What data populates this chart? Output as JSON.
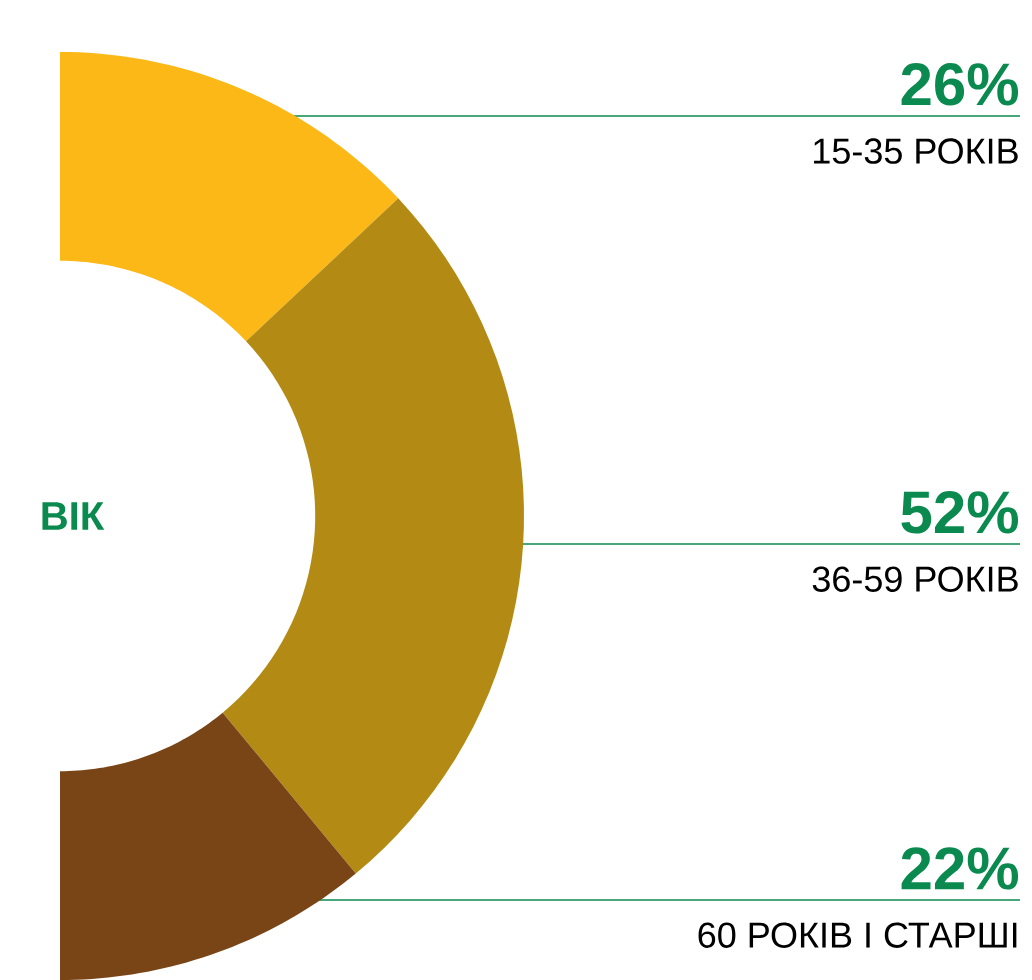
{
  "chart_data": {
    "type": "donut",
    "title": "ВІК",
    "categories": [
      "15-35 РОКІВ",
      "36-59 РОКІВ",
      "60 РОКІВ І СТАРШІ"
    ],
    "values": [
      26,
      52,
      22
    ],
    "value_labels": [
      "26%",
      "52%",
      "22%"
    ],
    "colors": [
      "#fbb817",
      "#b38b14",
      "#7a4516"
    ]
  }
}
